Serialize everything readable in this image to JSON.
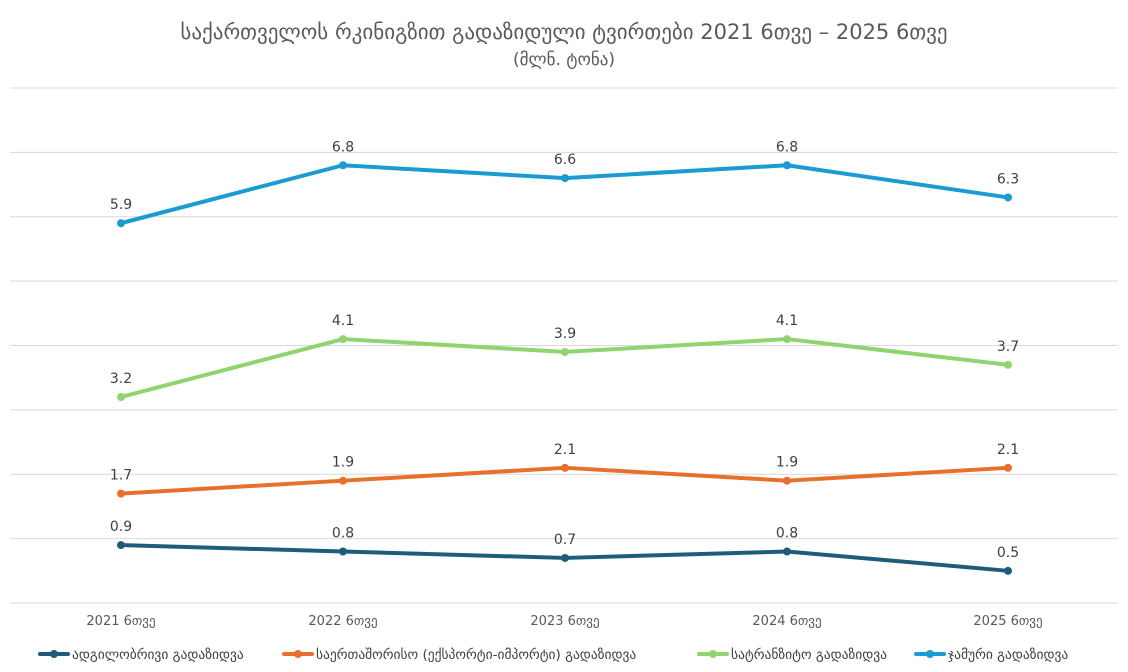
{
  "chart_data": {
    "type": "line",
    "title": "საქართველოს რკინიგზით გადაზიდული ტვირთები 2021 6თვე – 2025 6თვე",
    "subtitle": "(მლნ. ტონა)",
    "categories": [
      "2021 6თვე",
      "2022 6თვე",
      "2023 6თვე",
      "2024 6თვე",
      "2025 6თვე"
    ],
    "ylim": [
      0,
      8
    ],
    "grid": true,
    "legend_position": "bottom",
    "series": [
      {
        "name": "ადგილობრივი გადაზიდვა",
        "color": "#1f5c7a",
        "values": [
          0.9,
          0.8,
          0.7,
          0.8,
          0.5
        ]
      },
      {
        "name": "საერთაშორისო (ექსპორტი-იმპორტი) გადაზიდვა",
        "color": "#e8702a",
        "values": [
          1.7,
          1.9,
          2.1,
          1.9,
          2.1
        ]
      },
      {
        "name": "სატრანზიტო გადაზიდვა",
        "color": "#8fd46e",
        "values": [
          3.2,
          4.1,
          3.9,
          4.1,
          3.7
        ]
      },
      {
        "name": "ჯამური გადაზიდვა",
        "color": "#1b9bd1",
        "values": [
          5.9,
          6.8,
          6.6,
          6.8,
          6.3
        ]
      }
    ]
  }
}
